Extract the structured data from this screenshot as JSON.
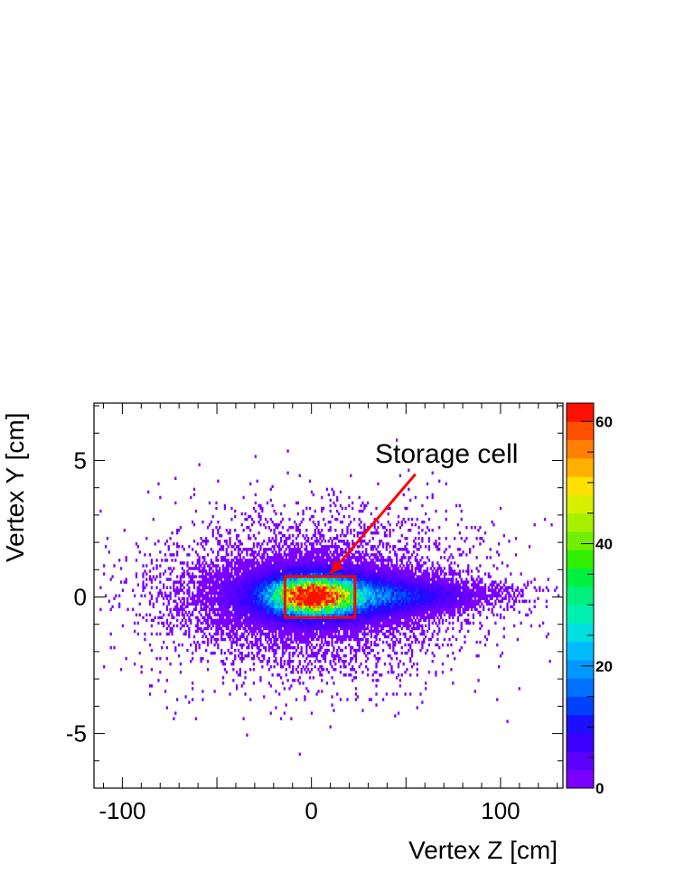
{
  "chart_data": {
    "type": "heatmap",
    "title": "",
    "xlabel": "Vertex Z [cm]",
    "ylabel": "Vertex Y [cm]",
    "xlim": [
      -115,
      133
    ],
    "ylim": [
      -7,
      7.1
    ],
    "zlim": [
      0,
      63
    ],
    "x_ticks": [
      {
        "value": -100,
        "label": "-100"
      },
      {
        "value": 0,
        "label": "0"
      },
      {
        "value": 100,
        "label": "100"
      }
    ],
    "y_ticks": [
      {
        "value": -5,
        "label": "-5"
      },
      {
        "value": 0,
        "label": "0"
      },
      {
        "value": 5,
        "label": "5"
      }
    ],
    "z_ticks": [
      {
        "value": 0,
        "label": "0"
      },
      {
        "value": 20,
        "label": "20"
      },
      {
        "value": 40,
        "label": "40"
      },
      {
        "value": 60,
        "label": "60"
      }
    ],
    "palette": [
      "#7a00ff",
      "#5a00ff",
      "#3a00ff",
      "#1a10ff",
      "#0040ff",
      "#0070ff",
      "#0098ff",
      "#00bcff",
      "#00e0e0",
      "#00f0b0",
      "#00f080",
      "#00f040",
      "#30f000",
      "#70f000",
      "#a8f000",
      "#d8f000",
      "#ffe000",
      "#ffb000",
      "#ff8000",
      "#ff5000",
      "#ff1000"
    ],
    "annotation": {
      "text": "Storage cell",
      "box_x": [
        -14,
        23
      ],
      "box_y": [
        -0.75,
        0.75
      ],
      "box_color": "#ff0000",
      "arrow_from": [
        55,
        4.5
      ],
      "arrow_to": [
        10,
        0.85
      ]
    }
  }
}
